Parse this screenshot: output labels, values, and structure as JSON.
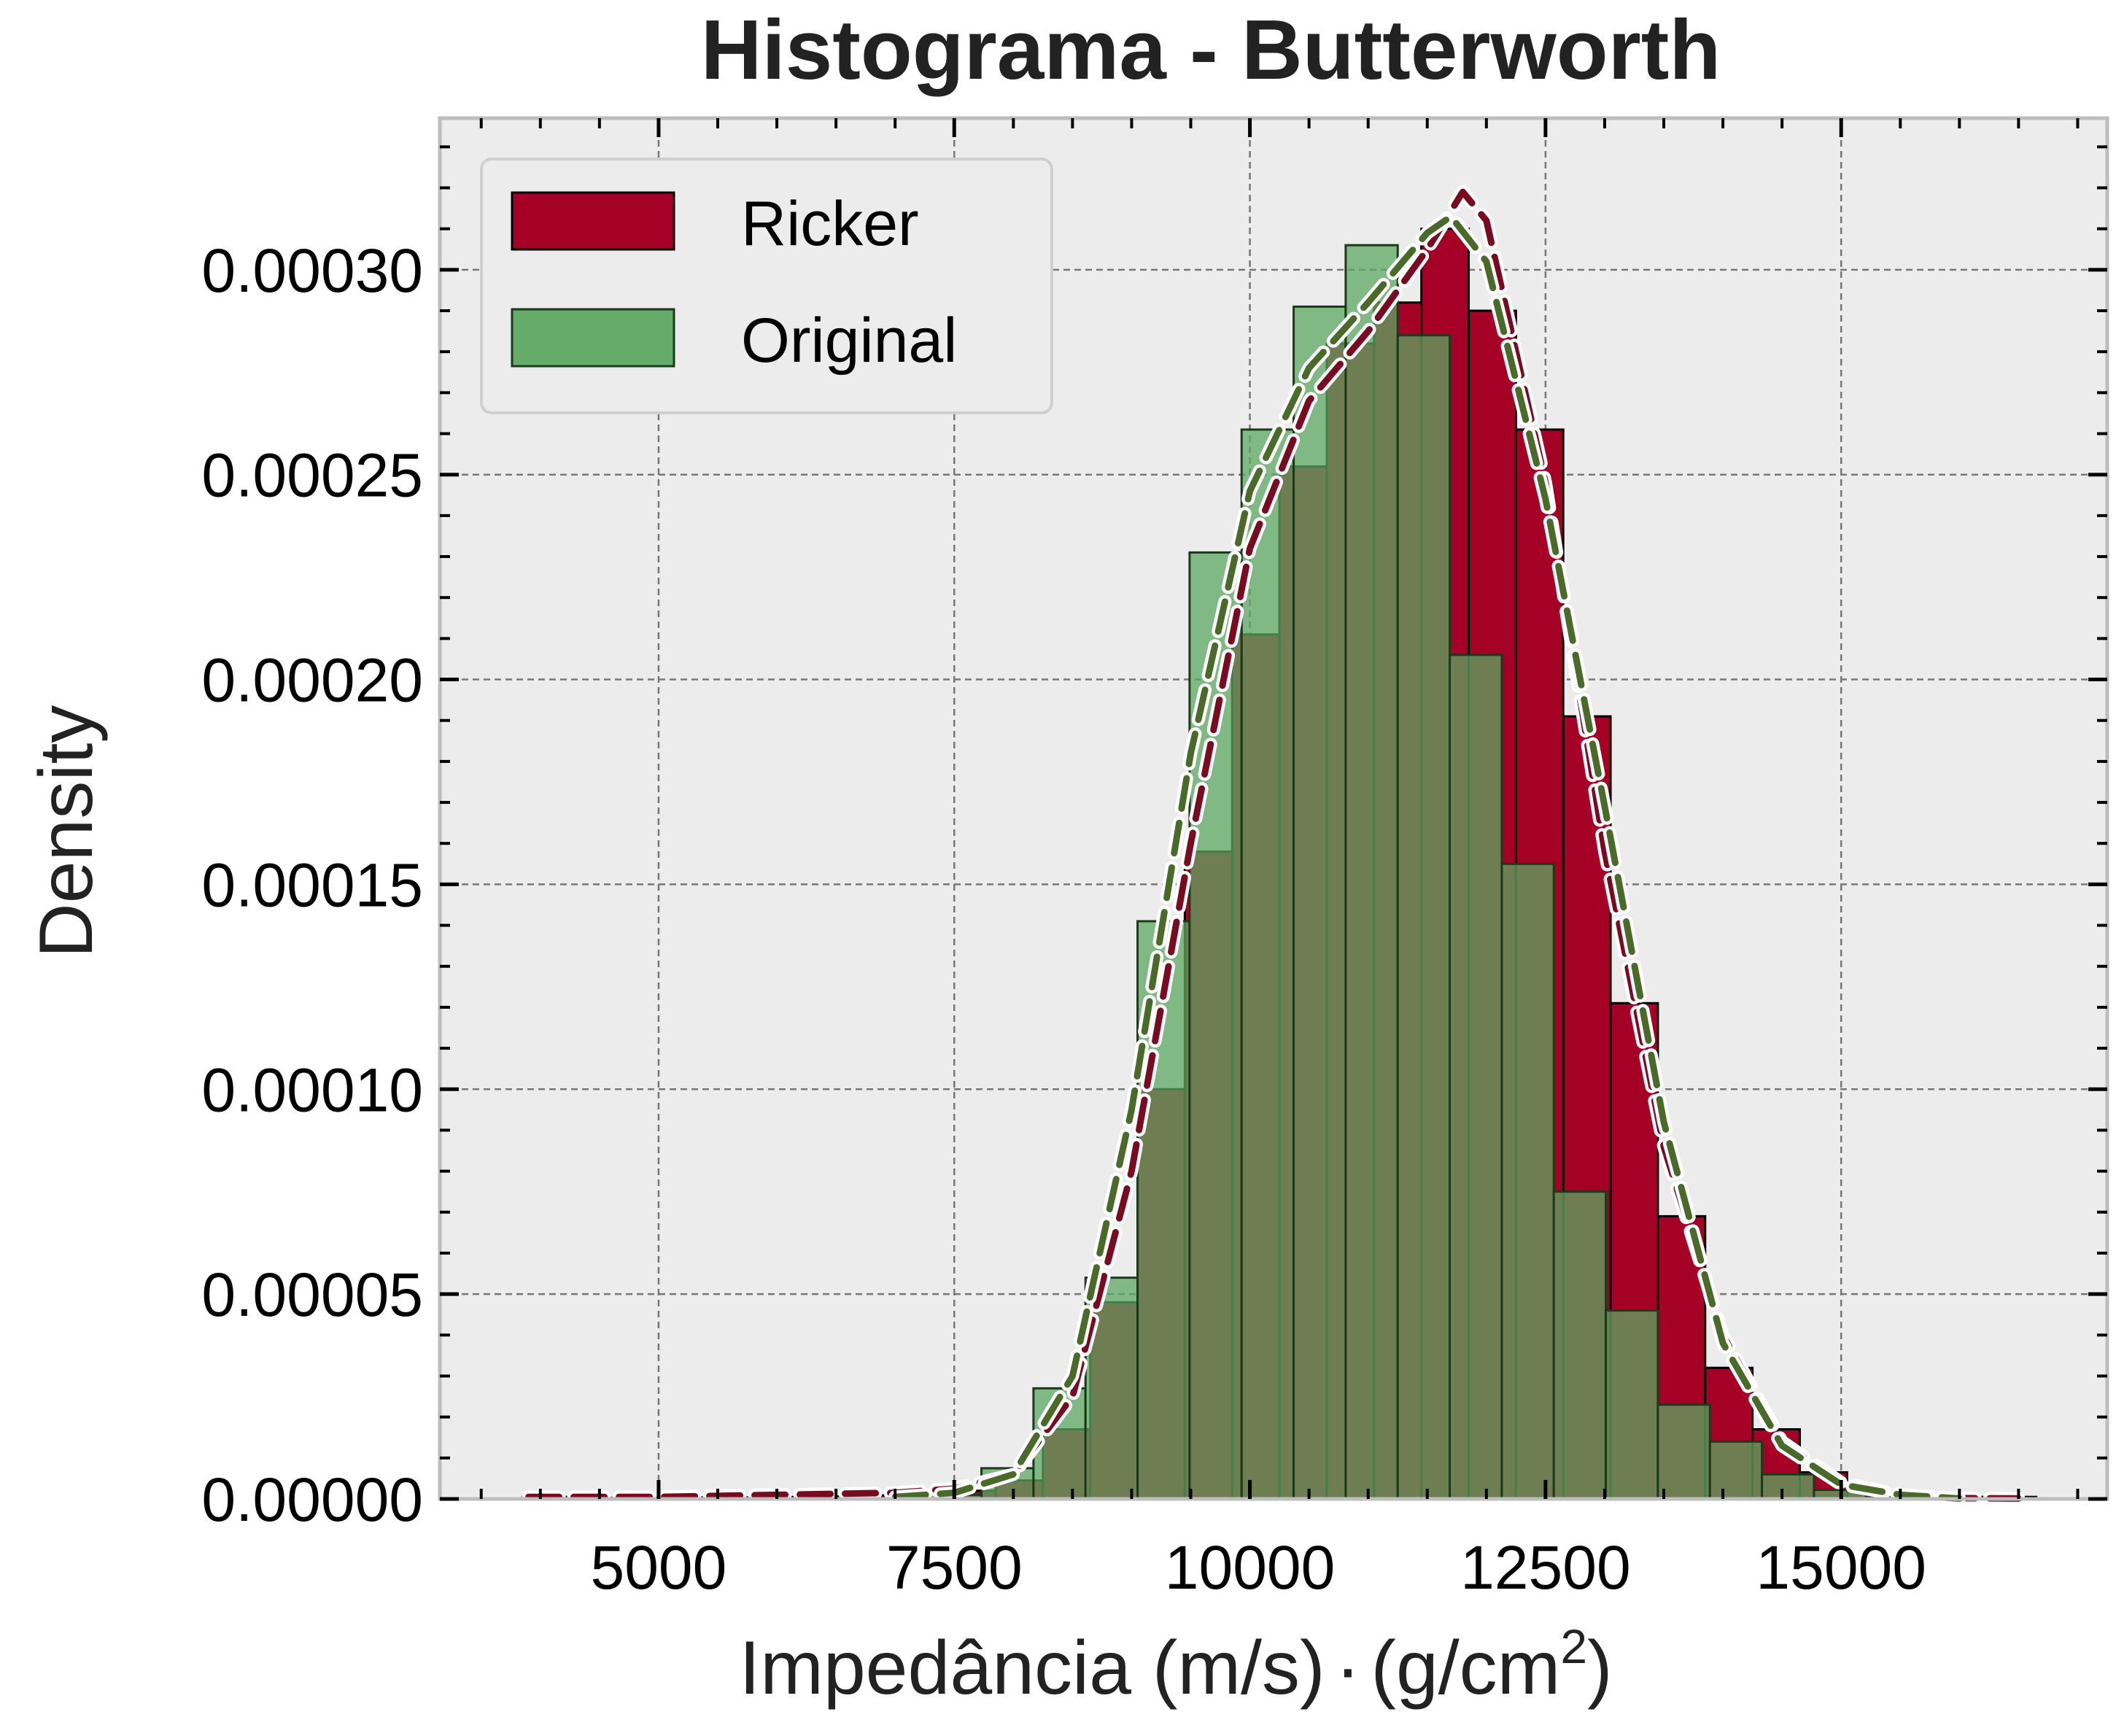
{
  "chart_data": {
    "type": "bar",
    "title": "Histograma - Butterworth",
    "xlabel": "Impedância (m/s)·(g/cm²)",
    "xlabel_main": "Impedância (m/s)",
    "xlabel_dot": "·",
    "xlabel_unit": "(g/cm",
    "xlabel_sup": "2",
    "xlabel_close": ")",
    "ylabel": "Density",
    "xlim": [
      3150,
      17250
    ],
    "ylim": [
      0,
      0.000337
    ],
    "xticks": [
      5000,
      7500,
      10000,
      12500,
      15000
    ],
    "xtick_labels": [
      "5000",
      "7500",
      "10000",
      "12500",
      "15000"
    ],
    "yticks": [
      0,
      5e-05,
      0.0001,
      0.00015,
      0.0002,
      0.00025,
      0.0003
    ],
    "ytick_labels": [
      "0.00000",
      "0.00005",
      "0.00010",
      "0.00015",
      "0.00020",
      "0.00025",
      "0.00030"
    ],
    "grid": true,
    "legend_position": "top-left",
    "background": "#ececec",
    "series": [
      {
        "name": "Ricker",
        "color": "#a50026",
        "bin_edges": [
          3850,
          4250,
          4650,
          5050,
          5450,
          5850,
          6250,
          6650,
          7050,
          7450,
          7850,
          8250,
          8650,
          9050,
          9450,
          9850,
          10250,
          10650,
          11050,
          11450,
          11850,
          12250,
          12650,
          13050,
          13450,
          13850,
          14250,
          14650,
          15050,
          15450,
          15850,
          16250,
          16650
        ],
        "values": [
          5e-07,
          3e-07,
          3e-07,
          4e-07,
          4e-07,
          5e-07,
          6e-07,
          9e-07,
          1.5e-06,
          2e-06,
          4.5e-06,
          1.7e-05,
          4.8e-05,
          0.0001,
          0.000158,
          0.000211,
          0.000252,
          0.000282,
          0.000292,
          0.00031,
          0.00029,
          0.000261,
          0.000191,
          0.000121,
          6.9e-05,
          3.2e-05,
          1.7e-05,
          6.5e-06,
          2e-06,
          8e-07,
          5e-07,
          5e-07
        ]
      },
      {
        "name": "Original",
        "color": "#5ea862",
        "bin_edges": [
          7290,
          7730,
          8170,
          8610,
          9050,
          9490,
          9930,
          10370,
          10810,
          11250,
          11690,
          12130,
          12570,
          13010,
          13450,
          13890,
          14330,
          14770,
          15210,
          15650
        ],
        "values": [
          1e-06,
          7.5e-06,
          2.7e-05,
          5.4e-05,
          0.000141,
          0.000231,
          0.000261,
          0.000291,
          0.000306,
          0.000284,
          0.000206,
          0.000155,
          7.5e-05,
          4.6e-05,
          2.3e-05,
          1.4e-05,
          6e-06,
          2.2e-06,
          5e-07
        ]
      }
    ],
    "kde": [
      {
        "name": "Ricker",
        "color": "#7a0a20",
        "x": [
          3900,
          5000,
          6000,
          7000,
          7500,
          8000,
          8500,
          9000,
          9500,
          10000,
          10500,
          11000,
          11500,
          11800,
          12000,
          12500,
          13000,
          13500,
          14000,
          14500,
          15000,
          15500,
          16000,
          16500
        ],
        "y": [
          5e-07,
          5e-07,
          1e-06,
          1.5e-06,
          2.5e-06,
          6e-06,
          2.5e-05,
          8e-05,
          0.00016,
          0.000232,
          0.000268,
          0.000285,
          0.000305,
          0.000319,
          0.000312,
          0.000248,
          0.000158,
          8.6e-05,
          4e-05,
          1.4e-05,
          4e-06,
          1e-06,
          2e-07,
          1e-07
        ]
      },
      {
        "name": "Original",
        "color": "#4a6a2a",
        "x": [
          7000,
          7500,
          8000,
          8500,
          9000,
          9500,
          10000,
          10500,
          11000,
          11500,
          11700,
          12000,
          12500,
          13000,
          13500,
          14000,
          14500,
          15000,
          15500,
          16000
        ],
        "y": [
          5e-07,
          1.5e-06,
          6e-06,
          3e-05,
          9.5e-05,
          0.000182,
          0.000246,
          0.000276,
          0.000292,
          0.000309,
          0.000313,
          0.000302,
          0.000244,
          0.000169,
          9.2e-05,
          3.8e-05,
          1.3e-05,
          3.5e-06,
          1e-06,
          1e-07
        ]
      }
    ]
  }
}
